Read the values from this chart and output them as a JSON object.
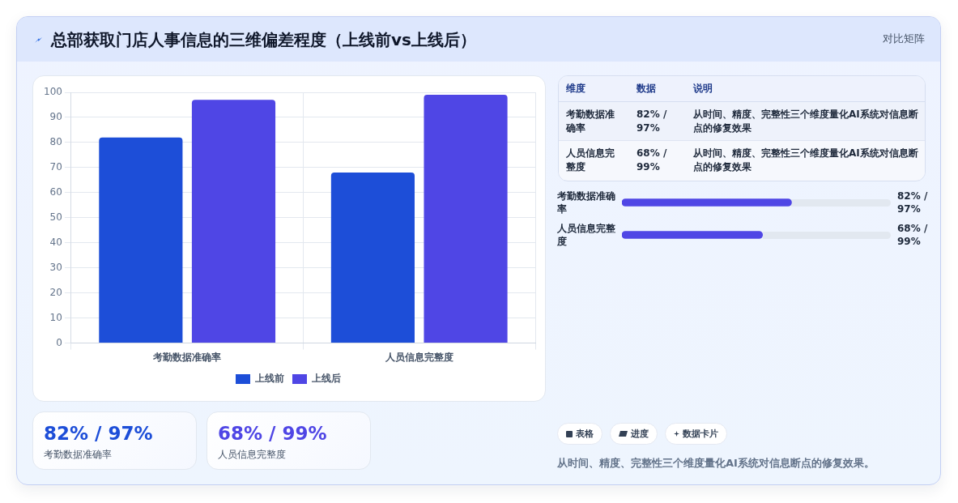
{
  "chart_data": [
    {
      "type": "other",
      "title": "总部获取门店人事信息的三维偏差程度（上线前vs上线后）",
      "subtitle": "对比矩阵"
    },
    {
      "type": "bar",
      "categories": [
        "考勤数据准确率",
        "人员信息完整度"
      ],
      "series": [
        {
          "name": "上线前",
          "color": "#1d4ed8",
          "values": [
            82,
            68
          ]
        },
        {
          "name": "上线后",
          "color": "#4f46e5",
          "values": [
            97,
            99
          ]
        }
      ],
      "ylim": [
        0,
        100
      ],
      "yticks": [
        0,
        10,
        20,
        30,
        40,
        50,
        60,
        70,
        80,
        90,
        100
      ],
      "grid": true,
      "legend": "bottom"
    },
    {
      "type": "other",
      "annotations": [
        "维度",
        "数据",
        "说明",
        "考勤数据准确率",
        "82% / 97%",
        "从时间、精度、完整性三个维度量化AI系统对信息断点的修复效果",
        "人员信息完整度",
        "68% / 99%",
        "从时间、精度、完整性三个维度量化AI系统对信息断点的修复效果"
      ]
    },
    {
      "type": "bar",
      "orientation": "horizontal",
      "categories": [
        "考勤数据准确率",
        "人员信息完整度"
      ],
      "values": [
        82,
        68
      ],
      "value_labels": [
        "82% / 97%",
        "68% / 99%"
      ],
      "color": "#4f46e5",
      "xlim": [
        0,
        130
      ],
      "tick_labels": "y"
    },
    {
      "type": "other",
      "annotations": [
        "82% / 97%",
        "考勤数据准确率",
        "68% / 99%",
        "人员信息完整度"
      ]
    },
    {
      "type": "other",
      "annotations": [
        "表格",
        "进度",
        "数据卡片",
        "从时间、精度、完整性三个维度量化AI系统对信息断点的修复效果。"
      ]
    }
  ]
}
